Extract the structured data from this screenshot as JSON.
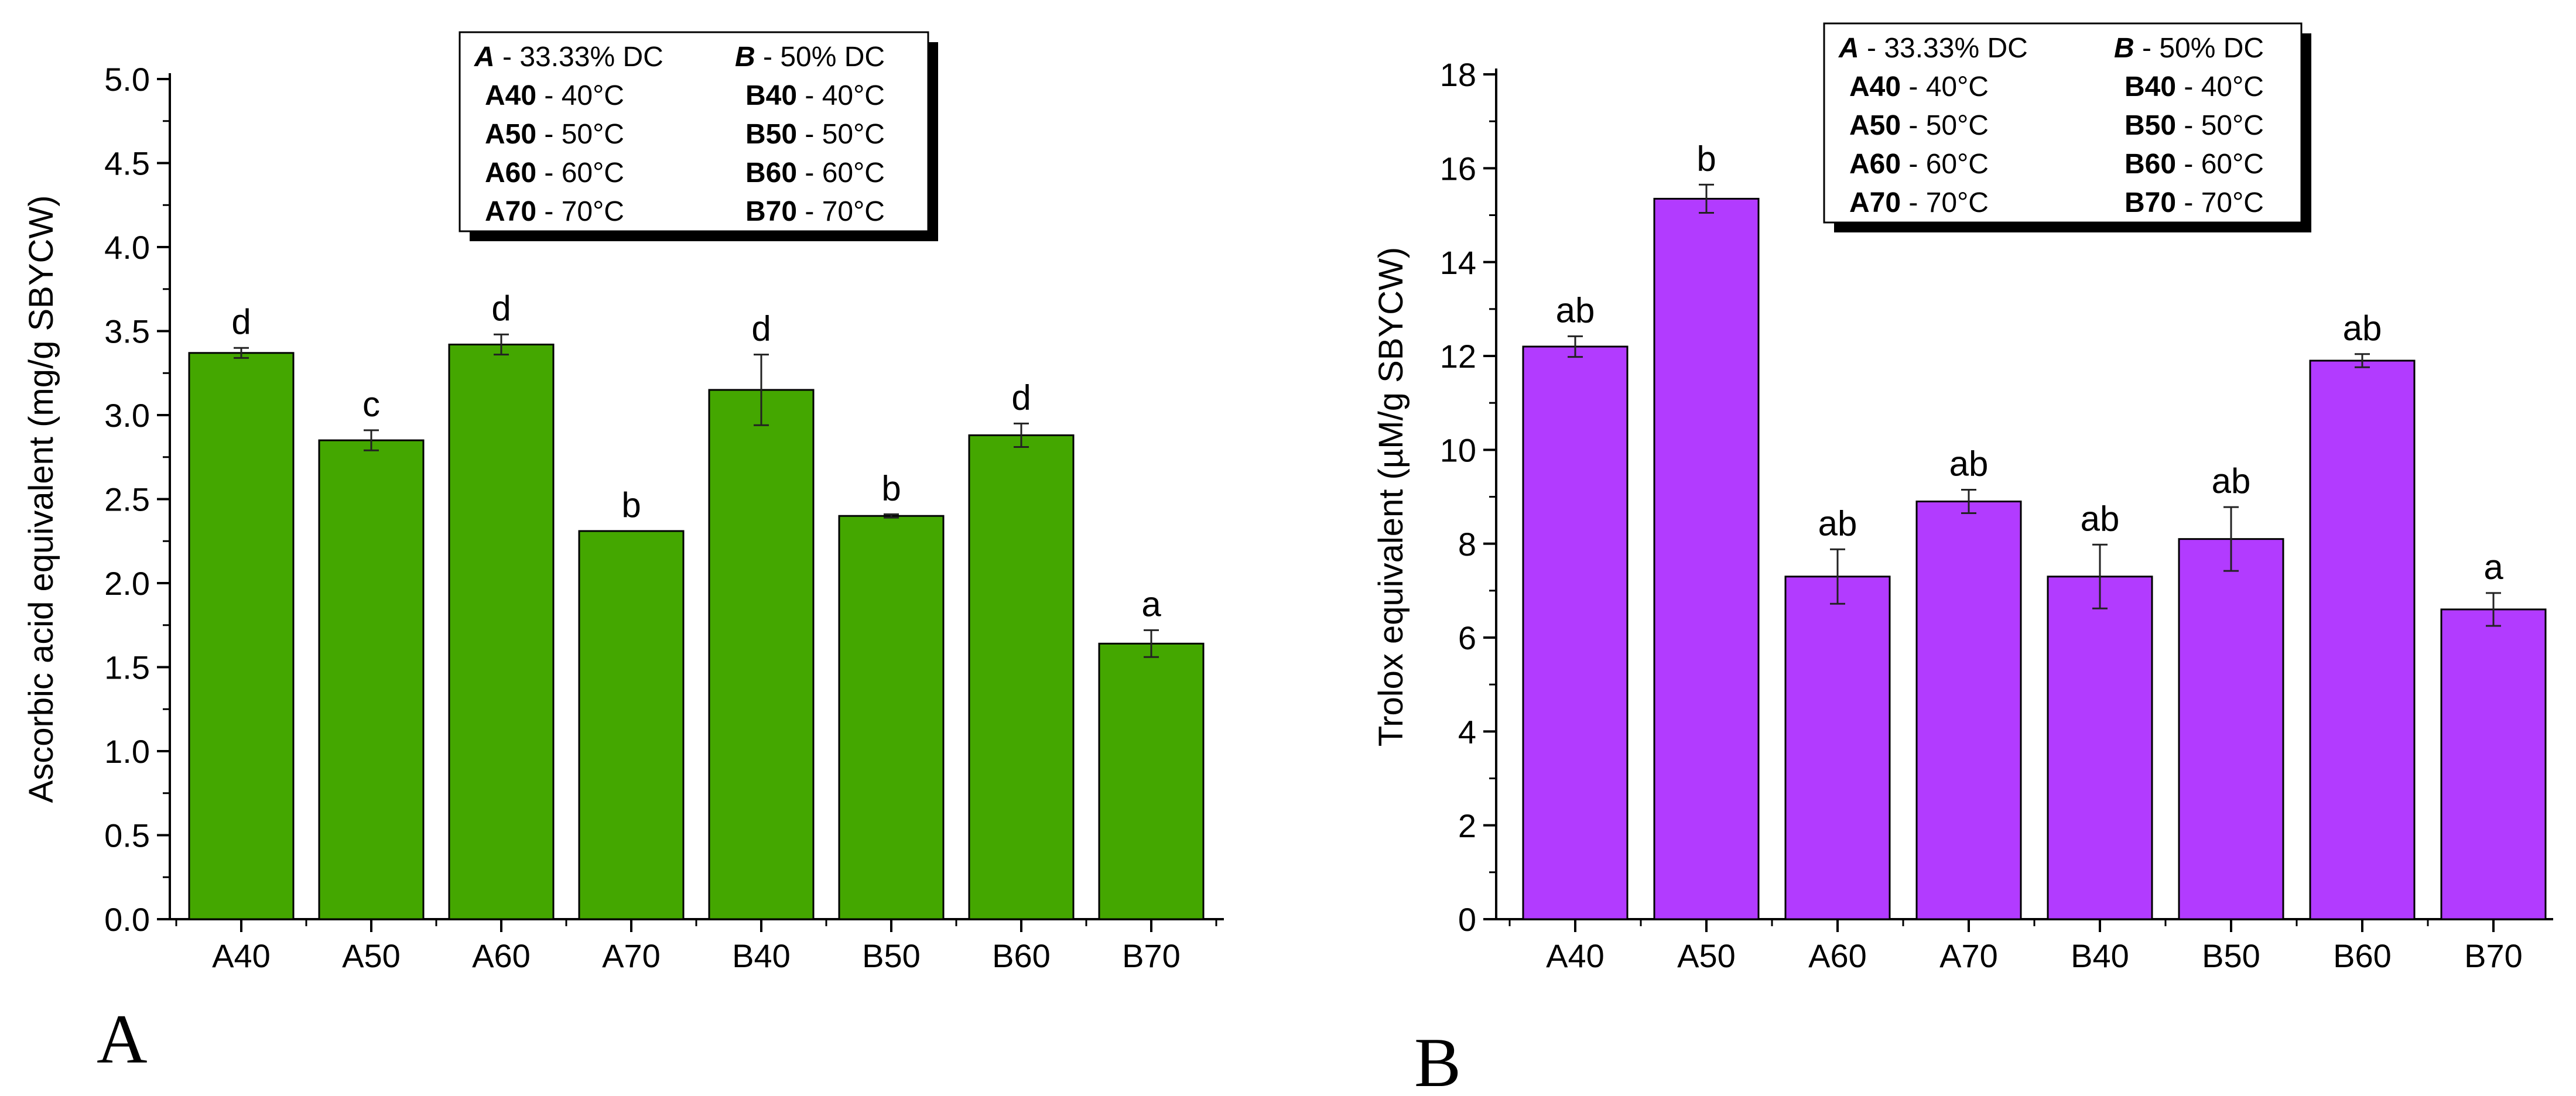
{
  "chart_data": [
    {
      "type": "bar",
      "panel_label": "A",
      "ylabel": "Ascorbic acid equivalent (mg/g SBYCW)",
      "xlabel": "",
      "categories": [
        "A40",
        "A50",
        "A60",
        "A70",
        "B40",
        "B50",
        "B60",
        "B70"
      ],
      "values": [
        3.37,
        2.85,
        3.42,
        2.31,
        3.15,
        2.4,
        2.88,
        1.64
      ],
      "errors": [
        0.03,
        0.06,
        0.06,
        0.0,
        0.21,
        0.01,
        0.07,
        0.08
      ],
      "significance": [
        "d",
        "c",
        "d",
        "b",
        "d",
        "b",
        "d",
        "a"
      ],
      "ylim": [
        0,
        5
      ],
      "yticks": [
        0.0,
        0.5,
        1.0,
        1.5,
        2.0,
        2.5,
        3.0,
        3.5,
        4.0,
        4.5,
        5.0
      ],
      "ytick_labels": [
        "0.0",
        "0.5",
        "1.0",
        "1.5",
        "2.0",
        "2.5",
        "3.0",
        "3.5",
        "4.0",
        "4.5",
        "5.0"
      ],
      "bar_color": "#44a700",
      "legend_position": "top-center",
      "legend": {
        "group_a": {
          "letter": "A",
          "text": " - 33.33% DC"
        },
        "group_b": {
          "letter": "B",
          "text": " - 50% DC"
        },
        "rows": [
          {
            "a_code": "A40",
            "a_text": " - 40°C",
            "b_code": "B40",
            "b_text": " - 40°C"
          },
          {
            "a_code": "A50",
            "a_text": " - 50°C",
            "b_code": "B50",
            "b_text": " - 50°C"
          },
          {
            "a_code": "A60",
            "a_text": " - 60°C",
            "b_code": "B60",
            "b_text": " - 60°C"
          },
          {
            "a_code": "A70",
            "a_text": " - 70°C",
            "b_code": "B70",
            "b_text": " - 70°C"
          }
        ]
      }
    },
    {
      "type": "bar",
      "panel_label": "B",
      "ylabel": "Trolox equivalent (µM/g SBYCW)",
      "xlabel": "",
      "categories": [
        "A40",
        "A50",
        "A60",
        "A70",
        "B40",
        "B50",
        "B60",
        "B70"
      ],
      "values": [
        12.2,
        15.35,
        7.3,
        8.9,
        7.3,
        8.1,
        11.9,
        6.6
      ],
      "errors": [
        0.22,
        0.3,
        0.58,
        0.25,
        0.68,
        0.68,
        0.14,
        0.35
      ],
      "significance": [
        "ab",
        "b",
        "ab",
        "ab",
        "ab",
        "ab",
        "ab",
        "a"
      ],
      "ylim": [
        0,
        18
      ],
      "yticks": [
        0,
        2,
        4,
        6,
        8,
        10,
        12,
        14,
        16,
        18
      ],
      "ytick_labels": [
        "0",
        "2",
        "4",
        "6",
        "8",
        "10",
        "12",
        "14",
        "16",
        "18"
      ],
      "bar_color": "#b23bff",
      "legend_position": "top-center",
      "legend": {
        "group_a": {
          "letter": "A",
          "text": " - 33.33% DC"
        },
        "group_b": {
          "letter": "B",
          "text": " - 50% DC"
        },
        "rows": [
          {
            "a_code": "A40",
            "a_text": " - 40°C",
            "b_code": "B40",
            "b_text": " - 40°C"
          },
          {
            "a_code": "A50",
            "a_text": " - 50°C",
            "b_code": "B50",
            "b_text": " - 50°C"
          },
          {
            "a_code": "A60",
            "a_text": " - 60°C",
            "b_code": "B60",
            "b_text": " - 60°C"
          },
          {
            "a_code": "A70",
            "a_text": " - 70°C",
            "b_code": "B70",
            "b_text": " - 70°C"
          }
        ]
      }
    }
  ]
}
